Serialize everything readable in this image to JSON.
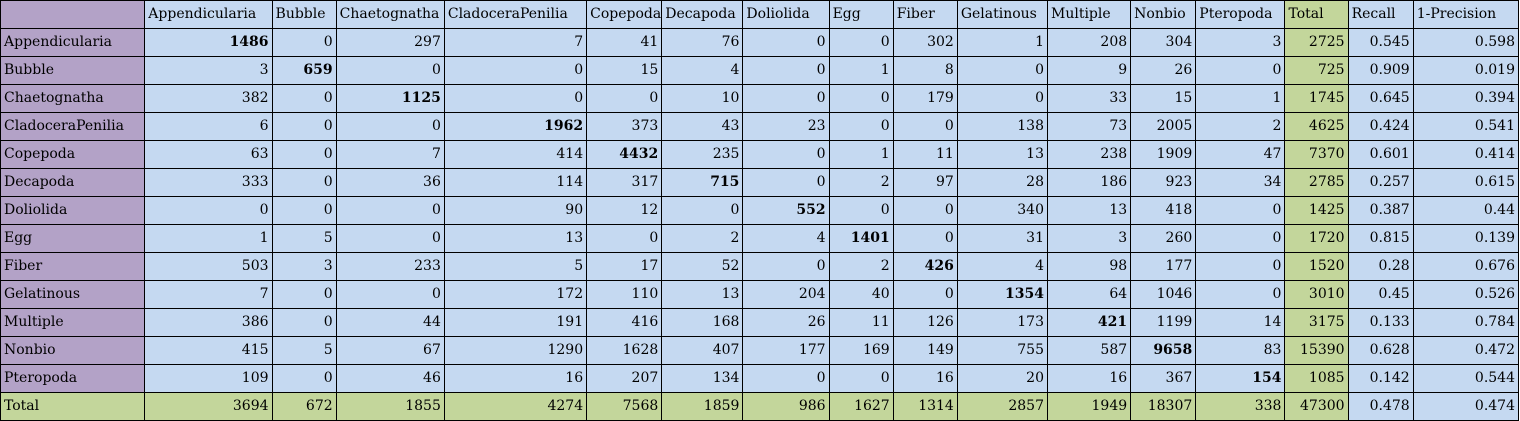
{
  "columns": [
    "Appendicularia",
    "Bubble",
    "Chaetognatha",
    "CladoceraPenilia",
    "Copepoda",
    "Decapoda",
    "Doliolida",
    "Egg",
    "Fiber",
    "Gelatinous",
    "Multiple",
    "Nonbio",
    "Pteropoda",
    "Total",
    "Recall",
    "1-Precision"
  ],
  "rows": [
    {
      "label": "Appendicularia",
      "values": [
        "1486",
        "0",
        "297",
        "7",
        "41",
        "76",
        "0",
        "0",
        "302",
        "1",
        "208",
        "304",
        "3",
        "2725",
        "0.545",
        "0.598"
      ]
    },
    {
      "label": "Bubble",
      "values": [
        "3",
        "659",
        "0",
        "0",
        "15",
        "4",
        "0",
        "1",
        "8",
        "0",
        "9",
        "26",
        "0",
        "725",
        "0.909",
        "0.019"
      ]
    },
    {
      "label": "Chaetognatha",
      "values": [
        "382",
        "0",
        "1125",
        "0",
        "0",
        "10",
        "0",
        "0",
        "179",
        "0",
        "33",
        "15",
        "1",
        "1745",
        "0.645",
        "0.394"
      ]
    },
    {
      "label": "CladoceraPenilia",
      "values": [
        "6",
        "0",
        "0",
        "1962",
        "373",
        "43",
        "23",
        "0",
        "0",
        "138",
        "73",
        "2005",
        "2",
        "4625",
        "0.424",
        "0.541"
      ]
    },
    {
      "label": "Copepoda",
      "values": [
        "63",
        "0",
        "7",
        "414",
        "4432",
        "235",
        "0",
        "1",
        "11",
        "13",
        "238",
        "1909",
        "47",
        "7370",
        "0.601",
        "0.414"
      ]
    },
    {
      "label": "Decapoda",
      "values": [
        "333",
        "0",
        "36",
        "114",
        "317",
        "715",
        "0",
        "2",
        "97",
        "28",
        "186",
        "923",
        "34",
        "2785",
        "0.257",
        "0.615"
      ]
    },
    {
      "label": "Doliolida",
      "values": [
        "0",
        "0",
        "0",
        "90",
        "12",
        "0",
        "552",
        "0",
        "0",
        "340",
        "13",
        "418",
        "0",
        "1425",
        "0.387",
        "0.44"
      ]
    },
    {
      "label": "Egg",
      "values": [
        "1",
        "5",
        "0",
        "13",
        "0",
        "2",
        "4",
        "1401",
        "0",
        "31",
        "3",
        "260",
        "0",
        "1720",
        "0.815",
        "0.139"
      ]
    },
    {
      "label": "Fiber",
      "values": [
        "503",
        "3",
        "233",
        "5",
        "17",
        "52",
        "0",
        "2",
        "426",
        "4",
        "98",
        "177",
        "0",
        "1520",
        "0.28",
        "0.676"
      ]
    },
    {
      "label": "Gelatinous",
      "values": [
        "7",
        "0",
        "0",
        "172",
        "110",
        "13",
        "204",
        "40",
        "0",
        "1354",
        "64",
        "1046",
        "0",
        "3010",
        "0.45",
        "0.526"
      ]
    },
    {
      "label": "Multiple",
      "values": [
        "386",
        "0",
        "44",
        "191",
        "416",
        "168",
        "26",
        "11",
        "126",
        "173",
        "421",
        "1199",
        "14",
        "3175",
        "0.133",
        "0.784"
      ]
    },
    {
      "label": "Nonbio",
      "values": [
        "415",
        "5",
        "67",
        "1290",
        "1628",
        "407",
        "177",
        "169",
        "149",
        "755",
        "587",
        "9658",
        "83",
        "15390",
        "0.628",
        "0.472"
      ]
    },
    {
      "label": "Pteropoda",
      "values": [
        "109",
        "0",
        "46",
        "16",
        "207",
        "134",
        "0",
        "0",
        "16",
        "20",
        "16",
        "367",
        "154",
        "1085",
        "0.142",
        "0.544"
      ]
    }
  ],
  "total_row": {
    "label": "Total",
    "values": [
      "3694",
      "672",
      "1855",
      "4274",
      "7568",
      "1859",
      "986",
      "1627",
      "1314",
      "2857",
      "1949",
      "18307",
      "338",
      "47300",
      "0.478",
      "0.474"
    ]
  },
  "colors": {
    "row_header": "#b3a2c7",
    "cell": "#c5d9f1",
    "total": "#c3d69b"
  }
}
